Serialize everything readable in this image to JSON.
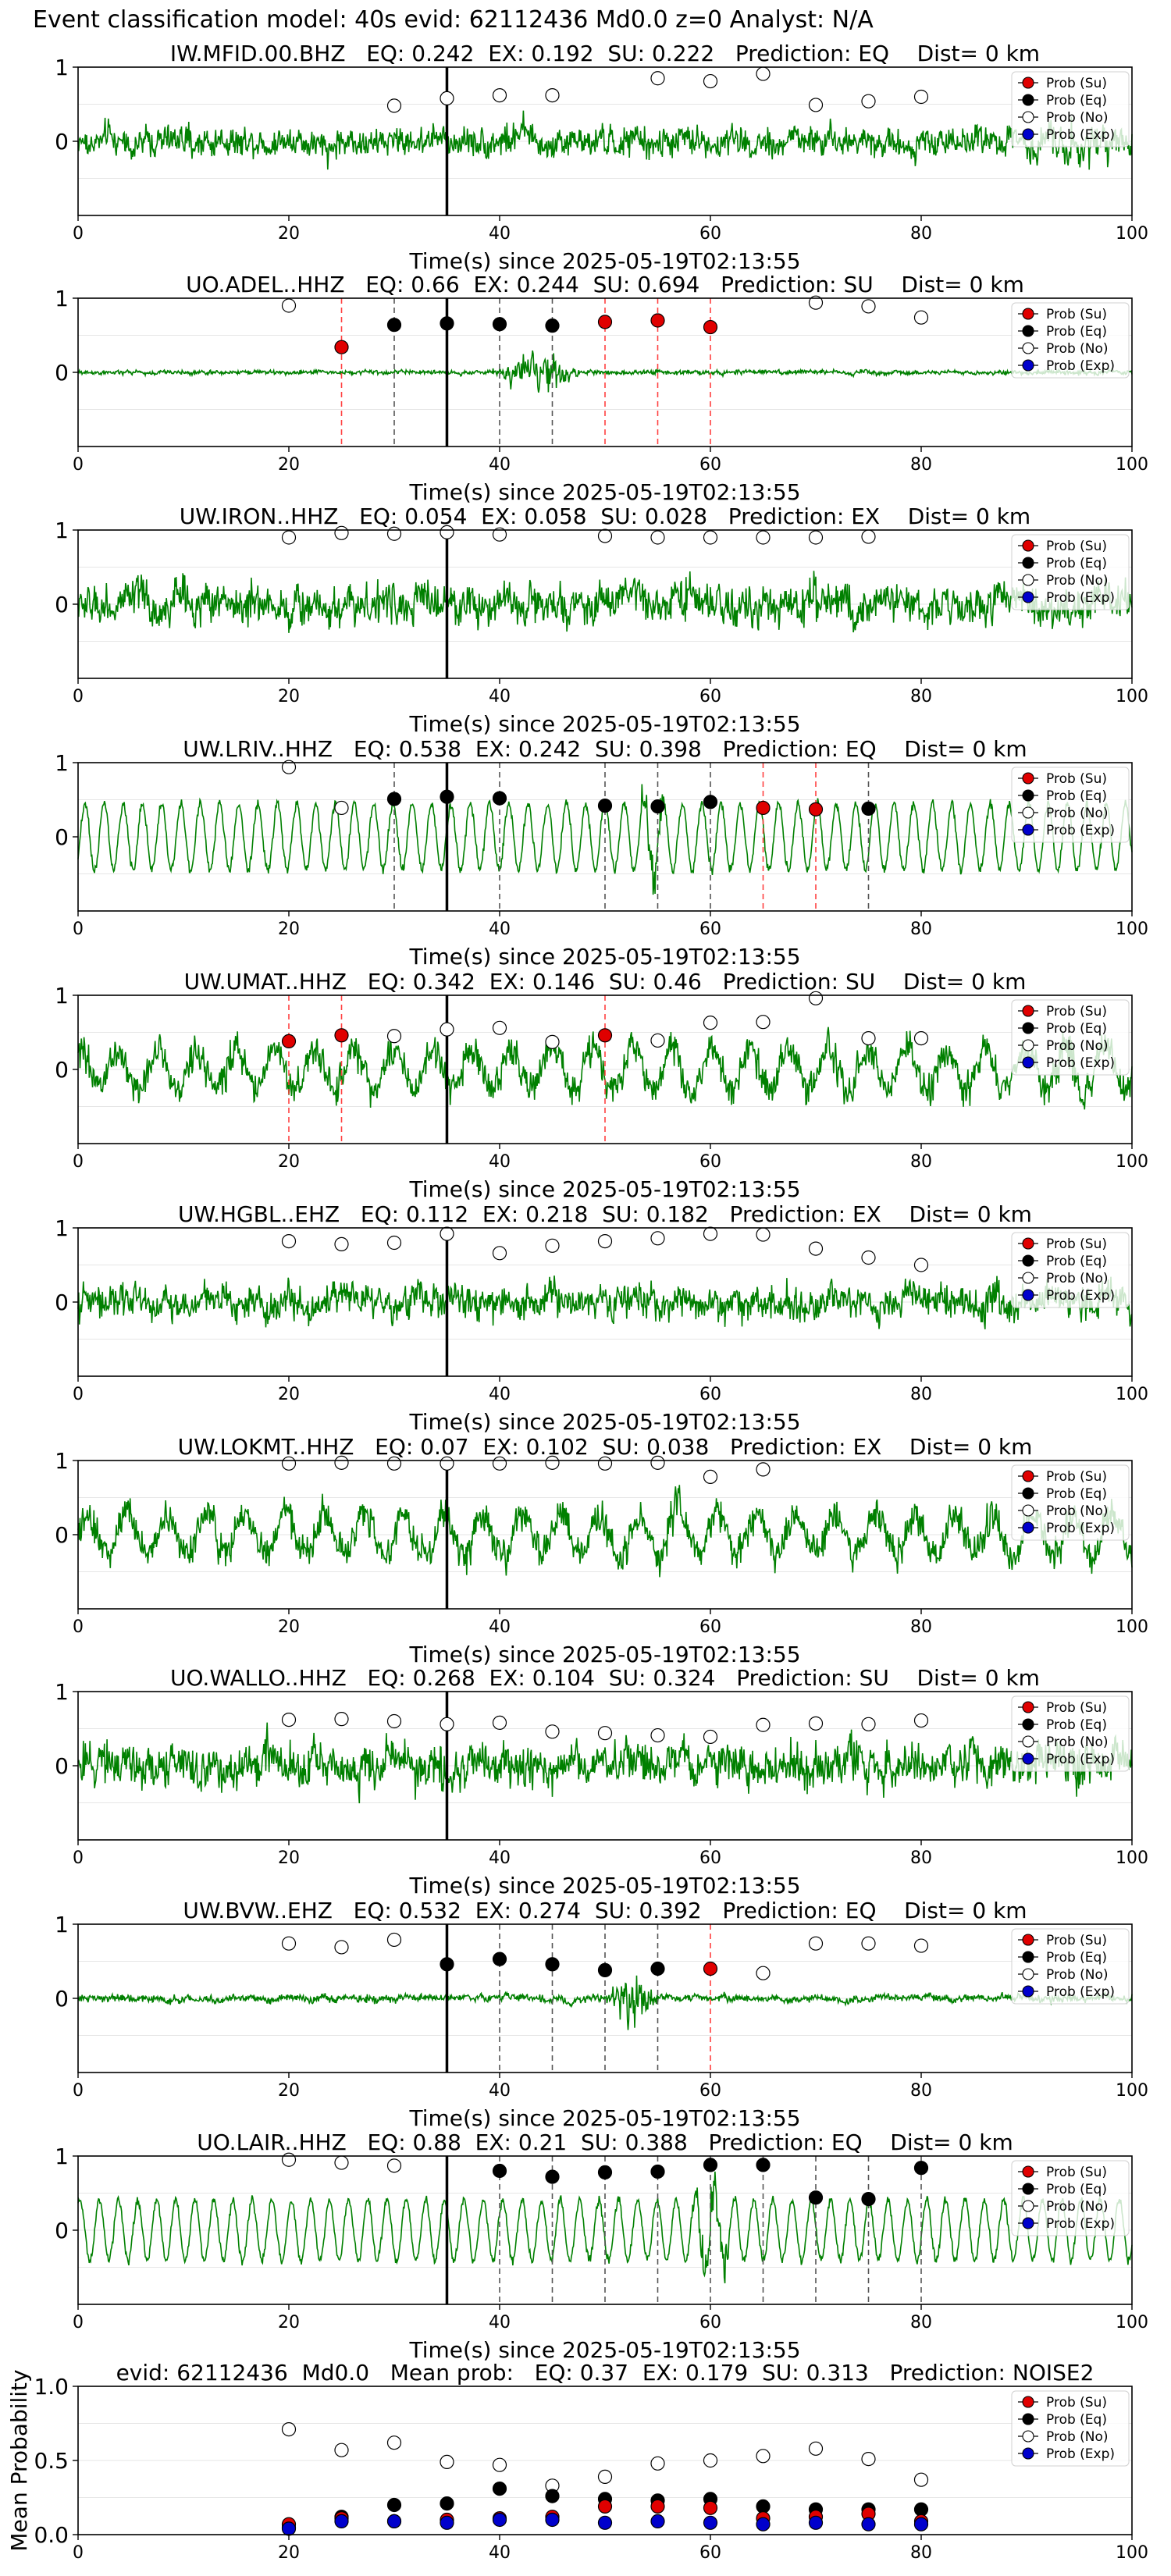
{
  "figure": {
    "suptitle": "Event classification model: 40s evid: 62112436 Md0.0 z=0 Analyst: N/A"
  },
  "legend": {
    "su": "Prob (Su)",
    "eq": "Prob (Eq)",
    "no": "Prob (No)",
    "exp": "Prob (Exp)"
  },
  "colors": {
    "waveform": "#008000",
    "su": "#e00000",
    "eq": "#000000",
    "no": "#ffffff",
    "exp": "#0000cc",
    "eq_marker_line": "#555555",
    "su_marker_line": "#ff4040"
  },
  "chart_data": [
    {
      "type": "line",
      "title": "IW.MFID.00.BHZ   EQ: 0.242  EX: 0.192  SU: 0.222   Prediction: EQ    Dist= 0 km",
      "xlabel": "Time(s) since 2025-05-19T02:13:55",
      "xlim": [
        0,
        100
      ],
      "ylim": [
        -1,
        1
      ],
      "xticks": [
        "0",
        "20",
        "40",
        "60",
        "80",
        "100"
      ],
      "yticks": [
        "0",
        "1"
      ],
      "t_pick": 35,
      "waveform": {
        "amp": 0.34,
        "style": "noise",
        "burst_t": [
          90,
          100
        ],
        "burst_gain": 1.5
      },
      "prob_no": [
        [
          30,
          0.48
        ],
        [
          35,
          0.58
        ],
        [
          40,
          0.62
        ],
        [
          45,
          0.62
        ],
        [
          55,
          0.85
        ],
        [
          60,
          0.81
        ],
        [
          65,
          0.91
        ],
        [
          70,
          0.49
        ],
        [
          75,
          0.54
        ],
        [
          80,
          0.6
        ]
      ],
      "prob_eq": [],
      "prob_su": [],
      "eq_lines": [],
      "su_lines": []
    },
    {
      "type": "line",
      "title": "UO.ADEL..HHZ   EQ: 0.66  EX: 0.244  SU: 0.694   Prediction: SU    Dist= 0 km",
      "xlabel": "Time(s) since 2025-05-19T02:13:55",
      "xlim": [
        0,
        100
      ],
      "ylim": [
        -1,
        1
      ],
      "xticks": [
        "0",
        "20",
        "40",
        "60",
        "80",
        "100"
      ],
      "yticks": [
        "0",
        "1"
      ],
      "t_pick": 35,
      "waveform": {
        "amp": 0.05,
        "style": "noise",
        "burst_t": [
          39,
          48
        ],
        "burst_gain": 10
      },
      "prob_no": [
        [
          20,
          0.9
        ],
        [
          70,
          0.94
        ],
        [
          75,
          0.89
        ],
        [
          80,
          0.74
        ]
      ],
      "prob_eq": [
        [
          30,
          0.64
        ],
        [
          35,
          0.66
        ],
        [
          40,
          0.65
        ],
        [
          45,
          0.63
        ]
      ],
      "prob_su": [
        [
          25,
          0.34
        ],
        [
          50,
          0.68
        ],
        [
          55,
          0.7
        ],
        [
          60,
          0.61
        ]
      ],
      "eq_lines": [
        30,
        40,
        45
      ],
      "su_lines": [
        25,
        50,
        55,
        60
      ]
    },
    {
      "type": "line",
      "title": "UW.IRON..HHZ   EQ: 0.054  EX: 0.058  SU: 0.028   Prediction: EX    Dist= 0 km",
      "xlabel": "Time(s) since 2025-05-19T02:13:55",
      "xlim": [
        0,
        100
      ],
      "ylim": [
        -1,
        1
      ],
      "xticks": [
        "0",
        "20",
        "40",
        "60",
        "80",
        "100"
      ],
      "yticks": [
        "0",
        "1"
      ],
      "t_pick": 35,
      "waveform": {
        "amp": 0.45,
        "style": "noise",
        "burst_t": [
          68,
          72
        ],
        "burst_gain": 1.5
      },
      "prob_no": [
        [
          20,
          0.9
        ],
        [
          25,
          0.96
        ],
        [
          30,
          0.95
        ],
        [
          35,
          0.97
        ],
        [
          40,
          0.94
        ],
        [
          50,
          0.92
        ],
        [
          55,
          0.9
        ],
        [
          60,
          0.9
        ],
        [
          65,
          0.9
        ],
        [
          70,
          0.9
        ],
        [
          75,
          0.91
        ]
      ],
      "prob_eq": [],
      "prob_su": [],
      "eq_lines": [],
      "su_lines": []
    },
    {
      "type": "line",
      "title": "UW.LRIV..HHZ   EQ: 0.538  EX: 0.242  SU: 0.398   Prediction: EQ    Dist= 0 km",
      "xlabel": "Time(s) since 2025-05-19T02:13:55",
      "xlim": [
        0,
        100
      ],
      "ylim": [
        -1,
        1
      ],
      "xticks": [
        "0",
        "20",
        "40",
        "60",
        "80",
        "100"
      ],
      "yticks": [
        "0",
        "1"
      ],
      "t_pick": 35,
      "waveform": {
        "amp": 0.6,
        "style": "wave",
        "burst_t": [
          53,
          56
        ],
        "burst_gain": 1.2
      },
      "prob_no": [
        [
          20,
          0.94
        ],
        [
          25,
          0.39
        ]
      ],
      "prob_eq": [
        [
          30,
          0.51
        ],
        [
          35,
          0.54
        ],
        [
          40,
          0.52
        ],
        [
          50,
          0.42
        ],
        [
          55,
          0.41
        ],
        [
          60,
          0.47
        ],
        [
          75,
          0.38
        ]
      ],
      "prob_su": [
        [
          65,
          0.39
        ],
        [
          70,
          0.37
        ]
      ],
      "eq_lines": [
        30,
        40,
        50,
        55,
        60,
        75
      ],
      "su_lines": [
        65,
        70
      ]
    },
    {
      "type": "line",
      "title": "UW.UMAT..HHZ   EQ: 0.342  EX: 0.146  SU: 0.46   Prediction: SU    Dist= 0 km",
      "xlabel": "Time(s) since 2025-05-19T02:13:55",
      "xlim": [
        0,
        100
      ],
      "ylim": [
        -1,
        1
      ],
      "xticks": [
        "0",
        "20",
        "40",
        "60",
        "80",
        "100"
      ],
      "yticks": [
        "0",
        "1"
      ],
      "t_pick": 35,
      "waveform": {
        "amp": 0.55,
        "style": "mixed",
        "burst_t": [
          90,
          100
        ],
        "burst_gain": 1.3
      },
      "prob_no": [
        [
          30,
          0.45
        ],
        [
          35,
          0.54
        ],
        [
          40,
          0.56
        ],
        [
          45,
          0.37
        ],
        [
          55,
          0.39
        ],
        [
          60,
          0.63
        ],
        [
          65,
          0.64
        ],
        [
          70,
          0.96
        ],
        [
          75,
          0.42
        ],
        [
          80,
          0.42
        ]
      ],
      "prob_eq": [],
      "prob_su": [
        [
          20,
          0.38
        ],
        [
          25,
          0.46
        ],
        [
          50,
          0.46
        ]
      ],
      "eq_lines": [],
      "su_lines": [
        20,
        25,
        50
      ]
    },
    {
      "type": "line",
      "title": "UW.HGBL..EHZ   EQ: 0.112  EX: 0.218  SU: 0.182   Prediction: EX    Dist= 0 km",
      "xlabel": "Time(s) since 2025-05-19T02:13:55",
      "xlim": [
        0,
        100
      ],
      "ylim": [
        -1,
        1
      ],
      "xticks": [
        "0",
        "20",
        "40",
        "60",
        "80",
        "100"
      ],
      "yticks": [
        "0",
        "1"
      ],
      "t_pick": 35,
      "waveform": {
        "amp": 0.38,
        "style": "noise",
        "burst_t": [
          85,
          89
        ],
        "burst_gain": 1.8
      },
      "prob_no": [
        [
          20,
          0.82
        ],
        [
          25,
          0.78
        ],
        [
          30,
          0.8
        ],
        [
          35,
          0.92
        ],
        [
          40,
          0.66
        ],
        [
          45,
          0.76
        ],
        [
          50,
          0.82
        ],
        [
          55,
          0.86
        ],
        [
          60,
          0.92
        ],
        [
          65,
          0.91
        ],
        [
          70,
          0.72
        ],
        [
          75,
          0.6
        ],
        [
          80,
          0.5
        ]
      ],
      "prob_eq": [],
      "prob_su": [],
      "eq_lines": [],
      "su_lines": []
    },
    {
      "type": "line",
      "title": "UW.LOKMT..HHZ   EQ: 0.07  EX: 0.102  SU: 0.038   Prediction: EX    Dist= 0 km",
      "xlabel": "Time(s) since 2025-05-19T02:13:55",
      "xlim": [
        0,
        100
      ],
      "ylim": [
        -1,
        1
      ],
      "xticks": [
        "0",
        "20",
        "40",
        "60",
        "80",
        "100"
      ],
      "yticks": [
        "0",
        "1"
      ],
      "t_pick": 35,
      "waveform": {
        "amp": 0.55,
        "style": "mixed",
        "burst_t": [
          55,
          58
        ],
        "burst_gain": 1.5
      },
      "prob_no": [
        [
          20,
          0.96
        ],
        [
          25,
          0.97
        ],
        [
          30,
          0.96
        ],
        [
          35,
          0.96
        ],
        [
          40,
          0.96
        ],
        [
          45,
          0.97
        ],
        [
          50,
          0.96
        ],
        [
          55,
          0.97
        ],
        [
          60,
          0.78
        ],
        [
          65,
          0.88
        ]
      ],
      "prob_eq": [],
      "prob_su": [],
      "eq_lines": [],
      "su_lines": []
    },
    {
      "type": "line",
      "title": "UO.WALLO..HHZ   EQ: 0.268  EX: 0.104  SU: 0.324   Prediction: SU    Dist= 0 km",
      "xlabel": "Time(s) since 2025-05-19T02:13:55",
      "xlim": [
        0,
        100
      ],
      "ylim": [
        -1,
        1
      ],
      "xticks": [
        "0",
        "20",
        "40",
        "60",
        "80",
        "100"
      ],
      "yticks": [
        "0",
        "1"
      ],
      "t_pick": 35,
      "waveform": {
        "amp": 0.5,
        "style": "noise",
        "burst_t": [
          72,
          76
        ],
        "burst_gain": 1.4
      },
      "prob_no": [
        [
          20,
          0.62
        ],
        [
          25,
          0.63
        ],
        [
          30,
          0.6
        ],
        [
          35,
          0.56
        ],
        [
          40,
          0.58
        ],
        [
          45,
          0.46
        ],
        [
          50,
          0.44
        ],
        [
          55,
          0.41
        ],
        [
          60,
          0.39
        ],
        [
          65,
          0.55
        ],
        [
          70,
          0.57
        ],
        [
          75,
          0.56
        ],
        [
          80,
          0.61
        ]
      ],
      "prob_eq": [],
      "prob_su": [],
      "eq_lines": [],
      "su_lines": []
    },
    {
      "type": "line",
      "title": "UW.BVW..EHZ   EQ: 0.532  EX: 0.274  SU: 0.392   Prediction: EQ    Dist= 0 km",
      "xlabel": "Time(s) since 2025-05-19T02:13:55",
      "xlim": [
        0,
        100
      ],
      "ylim": [
        -1,
        1
      ],
      "xticks": [
        "0",
        "20",
        "40",
        "60",
        "80",
        "100"
      ],
      "yticks": [
        "0",
        "1"
      ],
      "t_pick": 35,
      "waveform": {
        "amp": 0.09,
        "style": "noise",
        "burst_t": [
          50,
          55
        ],
        "burst_gain": 8
      },
      "prob_no": [
        [
          20,
          0.74
        ],
        [
          25,
          0.69
        ],
        [
          30,
          0.79
        ],
        [
          65,
          0.34
        ],
        [
          70,
          0.74
        ],
        [
          75,
          0.74
        ],
        [
          80,
          0.71
        ]
      ],
      "prob_eq": [
        [
          35,
          0.46
        ],
        [
          40,
          0.53
        ],
        [
          45,
          0.46
        ],
        [
          50,
          0.38
        ],
        [
          55,
          0.4
        ]
      ],
      "prob_su": [
        [
          60,
          0.4
        ]
      ],
      "eq_lines": [
        40,
        45,
        50,
        55
      ],
      "su_lines": [
        60
      ]
    },
    {
      "type": "line",
      "title": "UO.LAIR..HHZ   EQ: 0.88  EX: 0.21  SU: 0.388   Prediction: EQ    Dist= 0 km",
      "xlabel": "Time(s) since 2025-05-19T02:13:55",
      "xlim": [
        0,
        100
      ],
      "ylim": [
        -1,
        1
      ],
      "xticks": [
        "0",
        "20",
        "40",
        "60",
        "80",
        "100"
      ],
      "yticks": [
        "0",
        "1"
      ],
      "t_pick": 35,
      "waveform": {
        "amp": 0.55,
        "style": "wave",
        "burst_t": [
          58,
          62
        ],
        "burst_gain": 1.6
      },
      "prob_no": [
        [
          20,
          0.95
        ],
        [
          25,
          0.91
        ],
        [
          30,
          0.87
        ]
      ],
      "prob_eq": [
        [
          40,
          0.8
        ],
        [
          45,
          0.72
        ],
        [
          50,
          0.78
        ],
        [
          55,
          0.79
        ],
        [
          60,
          0.88
        ],
        [
          65,
          0.88
        ],
        [
          70,
          0.44
        ],
        [
          75,
          0.42
        ],
        [
          80,
          0.84
        ]
      ],
      "prob_su": [],
      "eq_lines": [
        40,
        45,
        50,
        55,
        60,
        65,
        70,
        75,
        80
      ],
      "su_lines": []
    },
    {
      "type": "scatter",
      "title": "evid: 62112436  Md0.0   Mean prob:   EQ: 0.37  EX: 0.179  SU: 0.313   Prediction: NOISE2",
      "ylabel": "Mean Probability",
      "xlim": [
        0,
        100
      ],
      "ylim": [
        0,
        1
      ],
      "xticks": [
        "0",
        "20",
        "40",
        "60",
        "80",
        "100"
      ],
      "yticks": [
        "0.0",
        "0.5",
        "1.0"
      ],
      "prob_no": [
        [
          20,
          0.71
        ],
        [
          25,
          0.57
        ],
        [
          30,
          0.62
        ],
        [
          35,
          0.49
        ],
        [
          40,
          0.47
        ],
        [
          45,
          0.33
        ],
        [
          50,
          0.39
        ],
        [
          55,
          0.48
        ],
        [
          60,
          0.5
        ],
        [
          65,
          0.53
        ],
        [
          70,
          0.58
        ],
        [
          75,
          0.51
        ],
        [
          80,
          0.37
        ]
      ],
      "prob_eq": [
        [
          20,
          0.05
        ],
        [
          25,
          0.12
        ],
        [
          30,
          0.2
        ],
        [
          35,
          0.21
        ],
        [
          40,
          0.31
        ],
        [
          45,
          0.26
        ],
        [
          50,
          0.24
        ],
        [
          55,
          0.23
        ],
        [
          60,
          0.24
        ],
        [
          65,
          0.19
        ],
        [
          70,
          0.17
        ],
        [
          75,
          0.17
        ],
        [
          80,
          0.17
        ]
      ],
      "prob_su": [
        [
          20,
          0.07
        ],
        [
          25,
          0.11
        ],
        [
          30,
          0.09
        ],
        [
          35,
          0.1
        ],
        [
          40,
          0.11
        ],
        [
          45,
          0.12
        ],
        [
          50,
          0.19
        ],
        [
          55,
          0.19
        ],
        [
          60,
          0.18
        ],
        [
          65,
          0.11
        ],
        [
          70,
          0.12
        ],
        [
          75,
          0.14
        ],
        [
          80,
          0.09
        ]
      ],
      "prob_exp": [
        [
          20,
          0.04
        ],
        [
          25,
          0.09
        ],
        [
          30,
          0.09
        ],
        [
          35,
          0.08
        ],
        [
          40,
          0.1
        ],
        [
          45,
          0.1
        ],
        [
          50,
          0.08
        ],
        [
          55,
          0.09
        ],
        [
          60,
          0.08
        ],
        [
          65,
          0.07
        ],
        [
          70,
          0.08
        ],
        [
          75,
          0.07
        ],
        [
          80,
          0.07
        ]
      ]
    }
  ]
}
